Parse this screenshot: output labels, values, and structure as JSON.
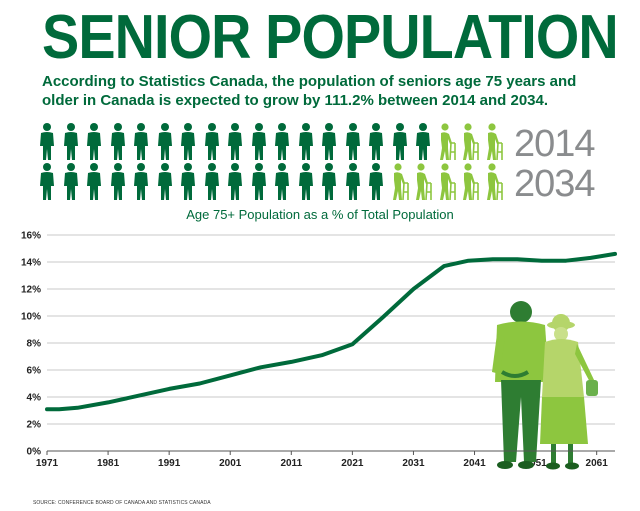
{
  "header": {
    "title": "SENIOR POPULATION",
    "subtitle": "According to Statistics Canada, the population of seniors age 75 years and older in Canada is expected to grow by 111.2% between 2014 and 2034."
  },
  "pictograph": {
    "rows": [
      {
        "year": "2014",
        "total_icons": 20,
        "senior_icons": 3
      },
      {
        "year": "2034",
        "total_icons": 20,
        "senior_icons": 5
      }
    ],
    "colors": {
      "population": "#006a3b",
      "senior": "#8dc63f",
      "year_text": "#8a8c8e"
    }
  },
  "source": "SOURCE: CONFERENCE BOARD OF CANADA AND STATISTICS CANADA",
  "colors": {
    "brand": "#006a3b",
    "line": "#006a3b",
    "grid": "#b7b7b7"
  },
  "chart_data": {
    "type": "line",
    "title": "Age 75+ Population as a % of Total Population",
    "xlabel": "",
    "ylabel": "",
    "xlim": [
      1971,
      2064
    ],
    "ylim": [
      0,
      16
    ],
    "x_ticks": [
      1971,
      1981,
      1991,
      2001,
      2011,
      2021,
      2031,
      2041,
      2051,
      2061
    ],
    "y_ticks": [
      0,
      2,
      4,
      6,
      8,
      10,
      12,
      14,
      16
    ],
    "y_tick_labels": [
      "0%",
      "2%",
      "4%",
      "6%",
      "8%",
      "10%",
      "12%",
      "14%",
      "16%"
    ],
    "grid": "horizontal",
    "series": [
      {
        "x": [
          1971,
          1973,
          1976,
          1981,
          1986,
          1991,
          1996,
          2001,
          2006,
          2011,
          2016,
          2021,
          2026,
          2031,
          2036,
          2040,
          2044,
          2048,
          2052,
          2056,
          2060,
          2064
        ],
        "values": [
          3.1,
          3.1,
          3.2,
          3.6,
          4.1,
          4.6,
          5.0,
          5.6,
          6.2,
          6.6,
          7.1,
          7.9,
          9.9,
          12.0,
          13.7,
          14.1,
          14.2,
          14.2,
          14.1,
          14.1,
          14.3,
          14.6
        ]
      }
    ]
  }
}
